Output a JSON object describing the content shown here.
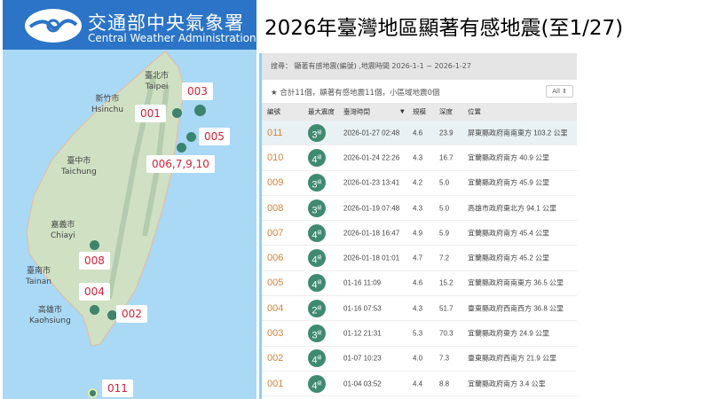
{
  "header": {
    "org_zh": "交通部中央氣象署",
    "org_en": "Central Weather Administration"
  },
  "title": "2026年臺灣地區顯著有感地震(至1/27)",
  "map": {
    "cities": [
      {
        "zh": "臺北市",
        "en": "Taipei"
      },
      {
        "zh": "新竹市",
        "en": "Hsinchu"
      },
      {
        "zh": "臺中市",
        "en": "Taichung"
      },
      {
        "zh": "嘉義市",
        "en": "Chiayi"
      },
      {
        "zh": "臺南市",
        "en": "Tainan"
      },
      {
        "zh": "高雄市",
        "en": "Kaohsiung"
      }
    ],
    "labels": [
      "003",
      "001",
      "005",
      "006,7,9,10",
      "008",
      "004",
      "002",
      "011"
    ]
  },
  "panel": {
    "search": "搜尋： 顯著有感地震(編號) ,地震時間 2026-1-1 ~ 2026-1-27",
    "summary": "★ 合計11個，顯著有感地震11個，小區域地震0個",
    "filter": "All ⇕",
    "columns": [
      "編號",
      "最大震度",
      "臺灣時間",
      "規模",
      "深度",
      "位置"
    ],
    "sort_icon": "▼",
    "rows": [
      {
        "id": "011",
        "int": "3",
        "unit": "級",
        "time": "2026-01-27 02:48",
        "mag": "4.6",
        "depth": "23.9",
        "loc": "屏東縣政府南南東方 103.2 公里"
      },
      {
        "id": "010",
        "int": "4",
        "unit": "級",
        "time": "2026-01-24 22:26",
        "mag": "4.3",
        "depth": "16.7",
        "loc": "宜蘭縣政府南方 40.9 公里"
      },
      {
        "id": "009",
        "int": "3",
        "unit": "級",
        "time": "2026-01-23 13:41",
        "mag": "4.2",
        "depth": "5.0",
        "loc": "宜蘭縣政府南方 45.9 公里"
      },
      {
        "id": "008",
        "int": "3",
        "unit": "級",
        "time": "2026-01-19 07:48",
        "mag": "4.3",
        "depth": "5.0",
        "loc": "高雄市政府東北方 94.1 公里"
      },
      {
        "id": "007",
        "int": "4",
        "unit": "級",
        "time": "2026-01-18 16:47",
        "mag": "4.9",
        "depth": "5.9",
        "loc": "宜蘭縣政府南方 45.4 公里"
      },
      {
        "id": "006",
        "int": "4",
        "unit": "級",
        "time": "2026-01-18 01:01",
        "mag": "4.7",
        "depth": "7.2",
        "loc": "宜蘭縣政府南方 45.2 公里"
      },
      {
        "id": "005",
        "int": "4",
        "unit": "級",
        "time": "01-16 11:09",
        "mag": "4.6",
        "depth": "15.2",
        "loc": "宜蘭縣政府南南東方 36.5 公里"
      },
      {
        "id": "004",
        "int": "2",
        "unit": "級",
        "time": "01-16 07:53",
        "mag": "4.3",
        "depth": "51.7",
        "loc": "臺東縣政府西南西方 36.8 公里"
      },
      {
        "id": "003",
        "int": "3",
        "unit": "級",
        "time": "01-12 21:31",
        "mag": "5.3",
        "depth": "70.3",
        "loc": "宜蘭縣政府東方 24.9 公里"
      },
      {
        "id": "002",
        "int": "4",
        "unit": "級",
        "time": "01-07 10:23",
        "mag": "4.0",
        "depth": "7.3",
        "loc": "臺東縣政府西南方 21.9 公里"
      },
      {
        "id": "001",
        "int": "4",
        "unit": "級",
        "time": "01-04 03:52",
        "mag": "4.4",
        "depth": "8.8",
        "loc": "宜蘭縣政府南方 3.4 公里"
      }
    ]
  }
}
